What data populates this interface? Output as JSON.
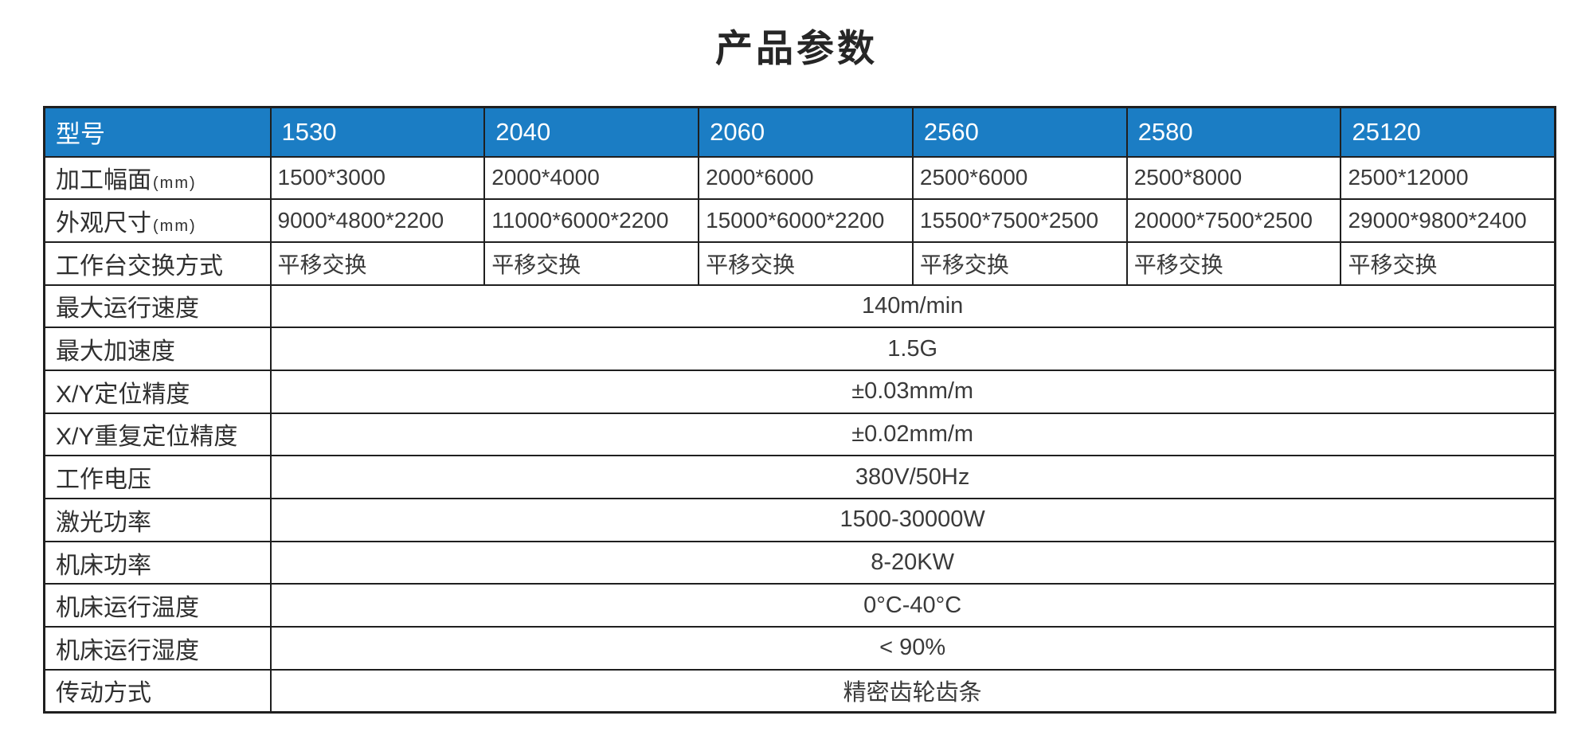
{
  "page": {
    "title": "产品参数"
  },
  "colors": {
    "header_bg": "#1b7dc4",
    "header_text": "#ffffff",
    "border": "#1f1f1f",
    "label_text": "#2f2f2f",
    "value_text": "#3a3a3a",
    "title_text": "#262626",
    "page_bg": "#ffffff"
  },
  "table": {
    "header": {
      "label": "型号",
      "models": [
        "1530",
        "2040",
        "2060",
        "2560",
        "2580",
        "25120"
      ]
    },
    "rows": [
      {
        "label": "加工幅面",
        "unit": "(mm)",
        "values": [
          "1500*3000",
          "2000*4000",
          "2000*6000",
          "2500*6000",
          "2500*8000",
          "2500*12000"
        ]
      },
      {
        "label": "外观尺寸",
        "unit": "(mm)",
        "values": [
          "9000*4800*2200",
          "11000*6000*2200",
          "15000*6000*2200",
          "15500*7500*2500",
          "20000*7500*2500",
          "29000*9800*2400"
        ]
      },
      {
        "label": "工作台交换方式",
        "values": [
          "平移交换",
          "平移交换",
          "平移交换",
          "平移交换",
          "平移交换",
          "平移交换"
        ]
      },
      {
        "label": "最大运行速度",
        "value": "140m/min"
      },
      {
        "label": "最大加速度",
        "value": "1.5G"
      },
      {
        "label": "X/Y定位精度",
        "value": "±0.03mm/m"
      },
      {
        "label": "X/Y重复定位精度",
        "value": "±0.02mm/m"
      },
      {
        "label": "工作电压",
        "value": "380V/50Hz"
      },
      {
        "label": "激光功率",
        "value": "1500-30000W"
      },
      {
        "label": "机床功率",
        "value": "8-20KW"
      },
      {
        "label": "机床运行温度",
        "value": "0°C-40°C"
      },
      {
        "label": "机床运行湿度",
        "value": "< 90%"
      },
      {
        "label": "传动方式",
        "value": "精密齿轮齿条"
      }
    ]
  }
}
